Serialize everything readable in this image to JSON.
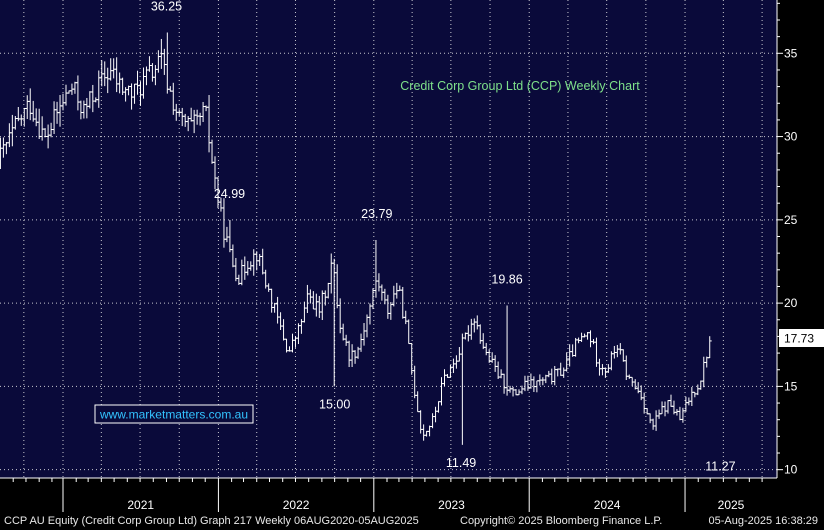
{
  "chart_data": {
    "type": "bar",
    "subtype": "ohlc-weekly",
    "title": "Credit Corp Group Ltd (CCP) Weekly Chart",
    "watermark": "www.marketmatters.com.au",
    "y_axis": {
      "side": "right",
      "ticks": [
        10,
        15,
        20,
        25,
        30,
        35
      ],
      "ylim": [
        9.5,
        38.2
      ]
    },
    "x_axis": {
      "labels": [
        "2021",
        "2022",
        "2023",
        "2024",
        "2025"
      ],
      "xlim": [
        "2020-08-06",
        "2025-08-05"
      ],
      "year_boundaries": [
        "2021-01-01",
        "2022-01-01",
        "2023-01-01",
        "2024-01-01",
        "2025-01-01"
      ]
    },
    "grid": true,
    "last_price": "17.73",
    "annotations": [
      {
        "text": "36.25",
        "date": "2021-09-01",
        "value": 36.25,
        "place": "above"
      },
      {
        "text": "24.99",
        "date": "2022-01-27",
        "value": 24.99,
        "place": "above"
      },
      {
        "text": "23.79",
        "date": "2023-01-08",
        "value": 23.79,
        "place": "above"
      },
      {
        "text": "19.86",
        "date": "2023-11-10",
        "value": 19.86,
        "place": "above"
      },
      {
        "text": "15.00",
        "date": "2022-10-01",
        "value": 15.0,
        "place": "below"
      },
      {
        "text": "11.49",
        "date": "2023-07-25",
        "value": 11.49,
        "place": "below"
      },
      {
        "text": "11.27",
        "date": "2025-03-25",
        "value": 11.27,
        "place": "below"
      }
    ],
    "anchors": [
      [
        "2020-08-07",
        28.8
      ],
      [
        "2020-09-10",
        30.5
      ],
      [
        "2020-10-15",
        32.0
      ],
      [
        "2020-11-20",
        29.8
      ],
      [
        "2020-12-20",
        31.5
      ],
      [
        "2021-01-20",
        33.0
      ],
      [
        "2021-02-20",
        31.5
      ],
      [
        "2021-03-20",
        32.8
      ],
      [
        "2021-04-20",
        34.0
      ],
      [
        "2021-05-15",
        33.0
      ],
      [
        "2021-06-15",
        32.5
      ],
      [
        "2021-07-15",
        33.5
      ],
      [
        "2021-08-20",
        34.5
      ],
      [
        "2021-09-05",
        33.0
      ],
      [
        "2021-10-01",
        31.0
      ],
      [
        "2021-11-01",
        30.5
      ],
      [
        "2021-12-01",
        31.5
      ],
      [
        "2021-12-20",
        28.0
      ],
      [
        "2022-01-08",
        25.0
      ],
      [
        "2022-02-01",
        22.5
      ],
      [
        "2022-02-20",
        21.5
      ],
      [
        "2022-03-10",
        22.5
      ],
      [
        "2022-04-01",
        23.0
      ],
      [
        "2022-05-01",
        20.5
      ],
      [
        "2022-05-20",
        19.0
      ],
      [
        "2022-06-15",
        17.0
      ],
      [
        "2022-07-10",
        18.5
      ],
      [
        "2022-08-01",
        20.5
      ],
      [
        "2022-08-25",
        19.5
      ],
      [
        "2022-09-10",
        20.8
      ],
      [
        "2022-09-25",
        22.5
      ],
      [
        "2022-10-15",
        18.5
      ],
      [
        "2022-11-05",
        16.8
      ],
      [
        "2022-11-25",
        17.3
      ],
      [
        "2022-12-20",
        19.5
      ],
      [
        "2023-01-08",
        21.5
      ],
      [
        "2023-02-01",
        19.5
      ],
      [
        "2023-02-25",
        21.0
      ],
      [
        "2023-03-15",
        19.0
      ],
      [
        "2023-04-05",
        15.0
      ],
      [
        "2023-04-25",
        12.0
      ],
      [
        "2023-05-20",
        13.0
      ],
      [
        "2023-06-15",
        15.5
      ],
      [
        "2023-07-10",
        16.5
      ],
      [
        "2023-08-05",
        18.0
      ],
      [
        "2023-08-25",
        19.2
      ],
      [
        "2023-09-20",
        17.0
      ],
      [
        "2023-10-25",
        15.5
      ],
      [
        "2023-11-25",
        14.5
      ],
      [
        "2023-12-20",
        15.0
      ],
      [
        "2024-01-20",
        15.2
      ],
      [
        "2024-02-20",
        15.5
      ],
      [
        "2024-03-20",
        16.0
      ],
      [
        "2024-04-20",
        17.5
      ],
      [
        "2024-05-20",
        18.2
      ],
      [
        "2024-06-10",
        16.5
      ],
      [
        "2024-07-01",
        16.0
      ],
      [
        "2024-07-25",
        17.5
      ],
      [
        "2024-08-20",
        15.5
      ],
      [
        "2024-09-20",
        14.5
      ],
      [
        "2024-10-15",
        12.5
      ],
      [
        "2024-11-05",
        13.5
      ],
      [
        "2024-11-25",
        14.0
      ],
      [
        "2024-12-20",
        13.0
      ],
      [
        "2025-01-15",
        14.5
      ],
      [
        "2025-02-05",
        15.3
      ],
      [
        "2025-02-28",
        17.73
      ]
    ]
  }
}
